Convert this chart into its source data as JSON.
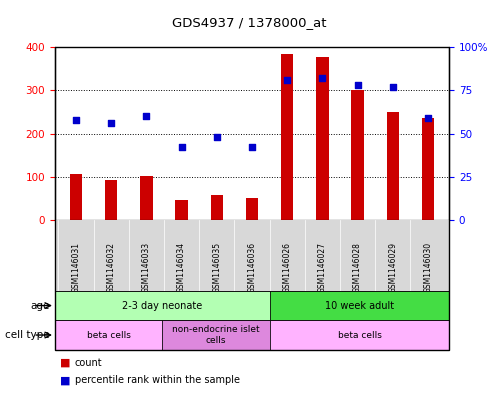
{
  "title": "GDS4937 / 1378000_at",
  "samples": [
    "GSM1146031",
    "GSM1146032",
    "GSM1146033",
    "GSM1146034",
    "GSM1146035",
    "GSM1146036",
    "GSM1146026",
    "GSM1146027",
    "GSM1146028",
    "GSM1146029",
    "GSM1146030"
  ],
  "counts": [
    106,
    92,
    103,
    46,
    58,
    50,
    385,
    378,
    302,
    250,
    235
  ],
  "percentiles": [
    58,
    56,
    60,
    42,
    48,
    42,
    81,
    82,
    78,
    77,
    59
  ],
  "bar_color": "#cc0000",
  "dot_color": "#0000cc",
  "ylim_left": [
    0,
    400
  ],
  "ylim_right": [
    0,
    100
  ],
  "yticks_left": [
    0,
    100,
    200,
    300,
    400
  ],
  "yticks_right": [
    0,
    25,
    50,
    75,
    100
  ],
  "yticklabels_right": [
    "0",
    "25",
    "50",
    "75",
    "100%"
  ],
  "age_groups": [
    {
      "label": "2-3 day neonate",
      "start": 0,
      "end": 6,
      "color": "#b3ffb3"
    },
    {
      "label": "10 week adult",
      "start": 6,
      "end": 11,
      "color": "#44dd44"
    }
  ],
  "cell_type_groups": [
    {
      "label": "beta cells",
      "start": 0,
      "end": 3,
      "color": "#ffb3ff"
    },
    {
      "label": "non-endocrine islet\ncells",
      "start": 3,
      "end": 6,
      "color": "#dd88dd"
    },
    {
      "label": "beta cells",
      "start": 6,
      "end": 11,
      "color": "#ffb3ff"
    }
  ],
  "legend_count_color": "#cc0000",
  "legend_dot_color": "#0000cc",
  "background_color": "#ffffff",
  "label_row1": "age",
  "label_row2": "cell type"
}
